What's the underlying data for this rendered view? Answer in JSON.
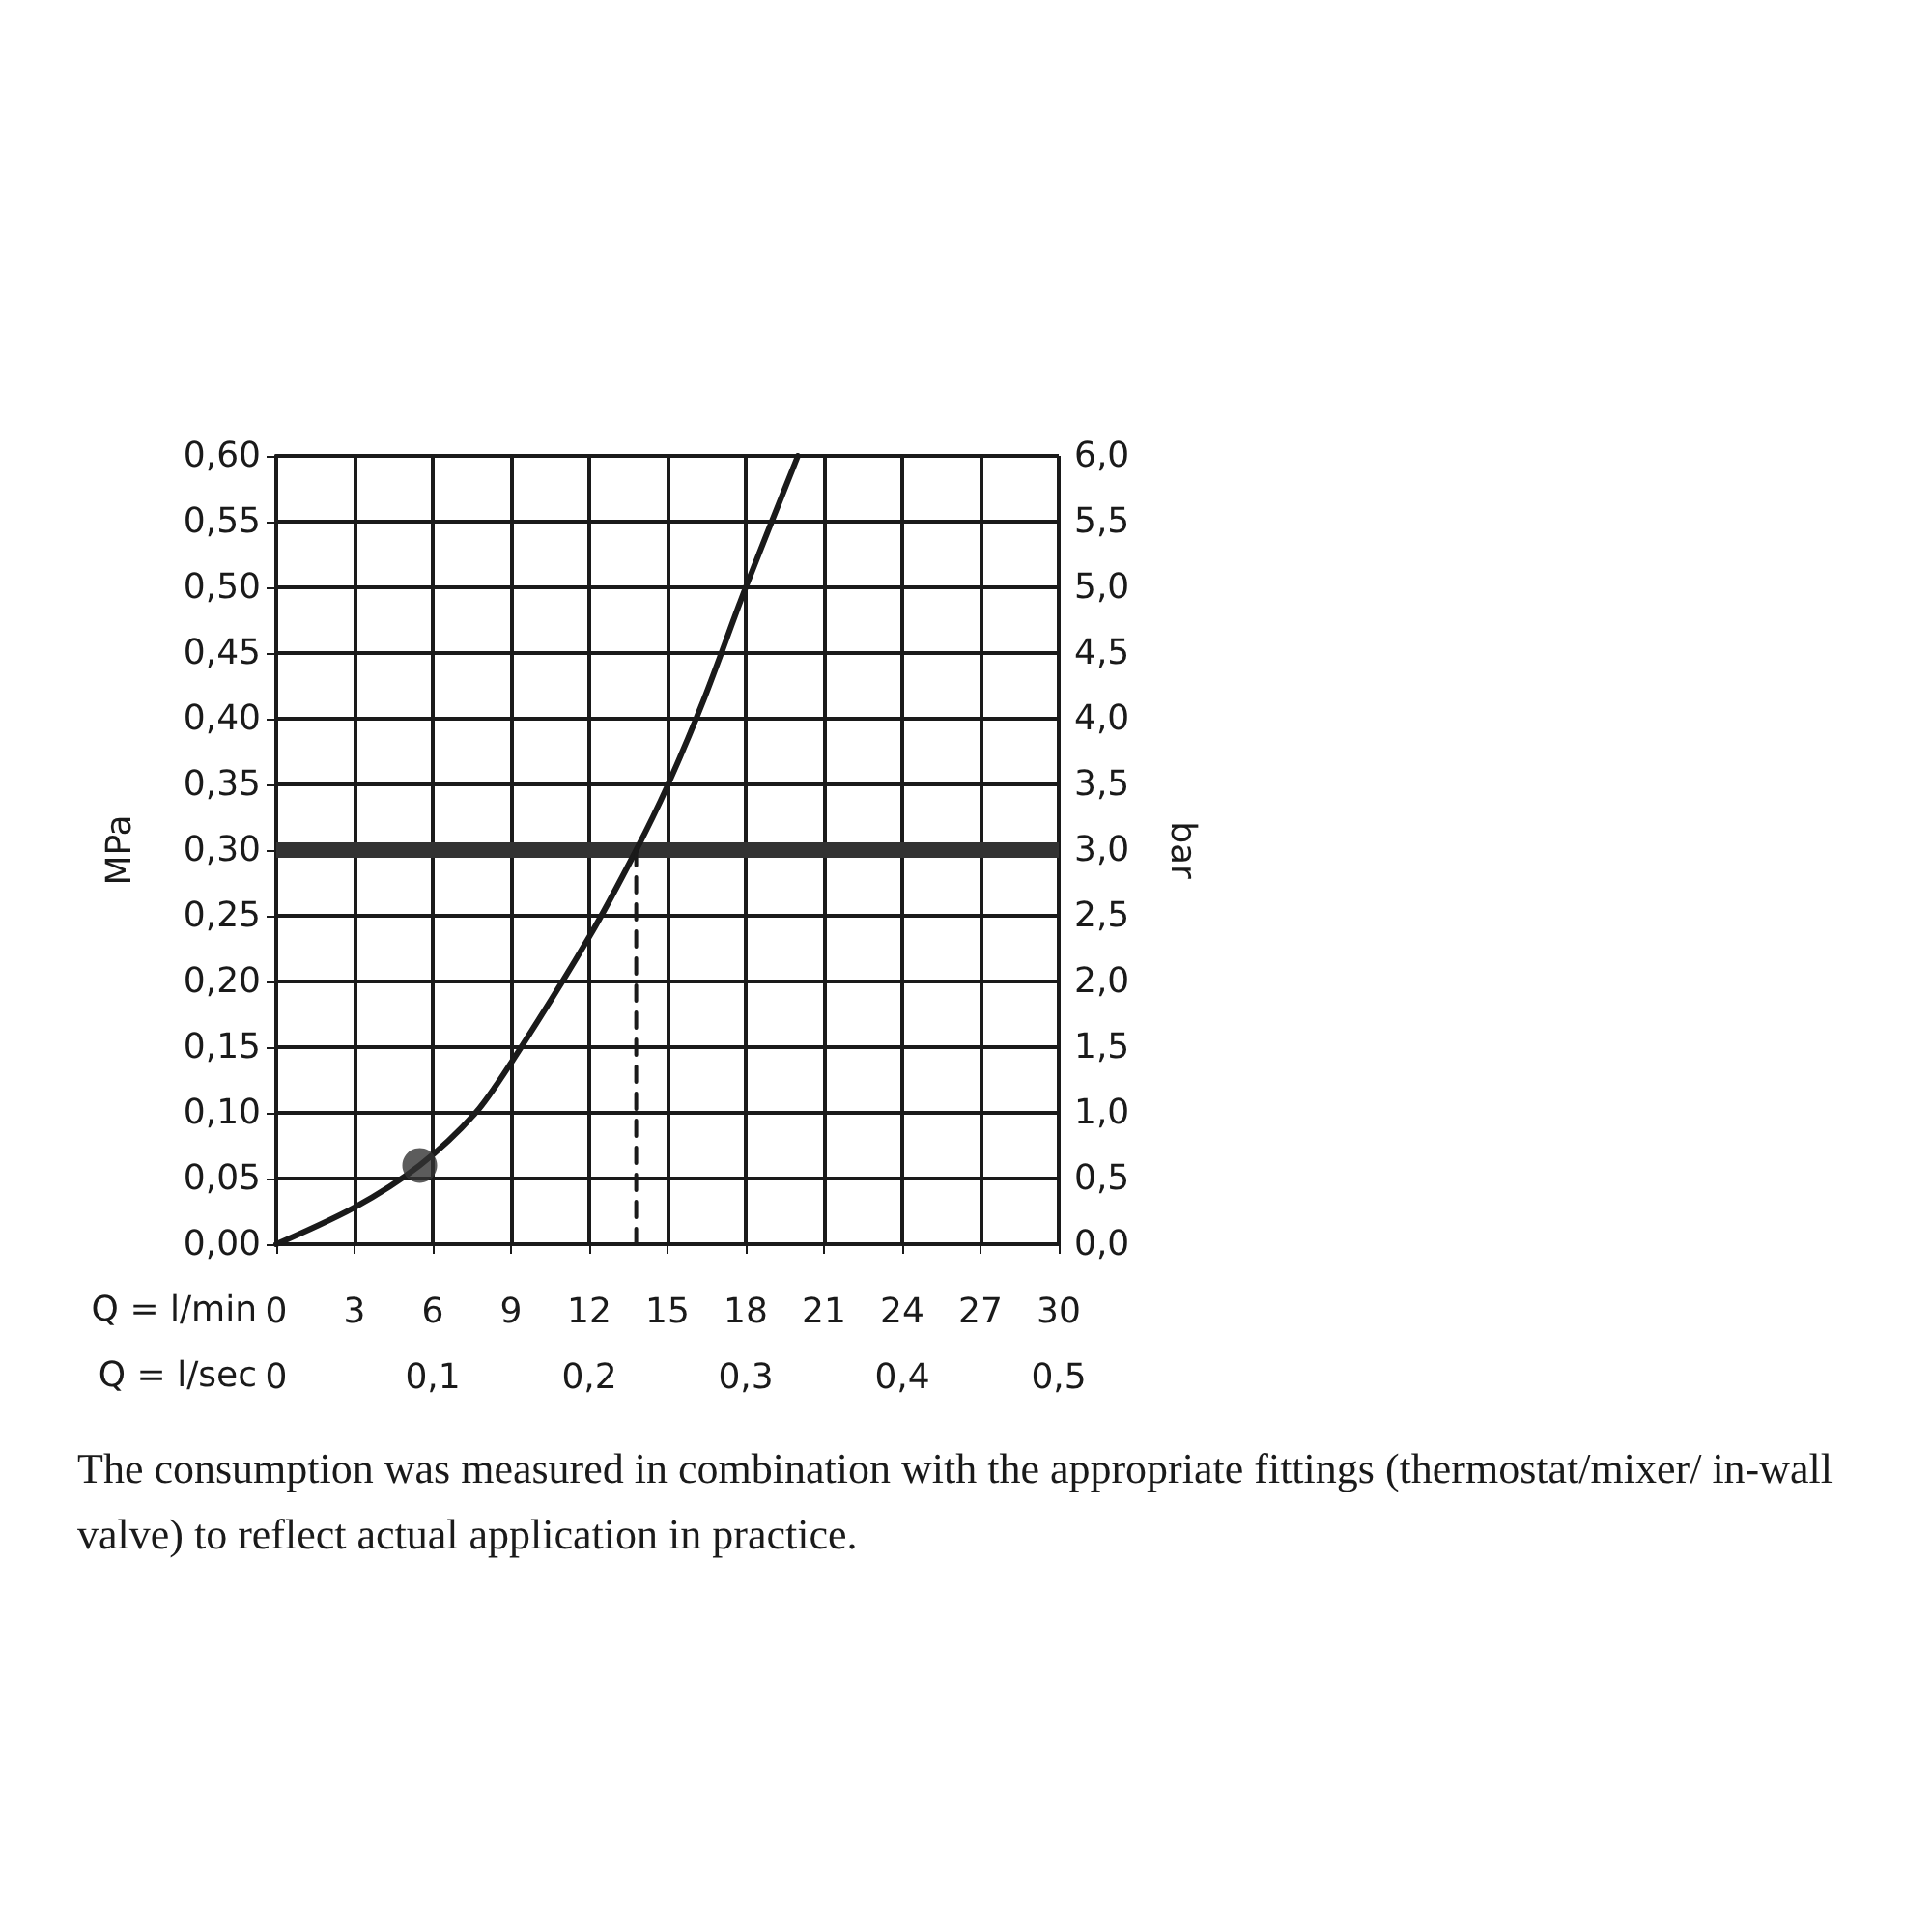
{
  "chart_data": {
    "type": "line",
    "xlabel": "Q = l/min",
    "x2label": "Q = l/sec",
    "ylabel": "MPa",
    "y2label": "bar",
    "xlim": [
      0,
      30
    ],
    "xticks": [
      0,
      3,
      6,
      9,
      12,
      15,
      18,
      21,
      24,
      27,
      30
    ],
    "x2lim": [
      0,
      0.5
    ],
    "x2ticks": [
      0,
      {
        "value": 0.1,
        "label": "0,1"
      },
      {
        "value": 0.2,
        "label": "0,2"
      },
      {
        "value": 0.3,
        "label": "0,3"
      },
      {
        "value": 0.4,
        "label": "0,4"
      },
      {
        "value": 0.5,
        "label": "0,5"
      }
    ],
    "ylim": [
      0,
      0.6
    ],
    "yticks": [
      {
        "value": 0,
        "label": "0,00"
      },
      {
        "value": 0.05,
        "label": "0,05"
      },
      {
        "value": 0.1,
        "label": "0,10"
      },
      {
        "value": 0.15,
        "label": "0,15"
      },
      {
        "value": 0.2,
        "label": "0,20"
      },
      {
        "value": 0.25,
        "label": "0,25"
      },
      {
        "value": 0.3,
        "label": "0,30"
      },
      {
        "value": 0.35,
        "label": "0,35"
      },
      {
        "value": 0.4,
        "label": "0,40"
      },
      {
        "value": 0.45,
        "label": "0,45"
      },
      {
        "value": 0.5,
        "label": "0,50"
      },
      {
        "value": 0.55,
        "label": "0,55"
      },
      {
        "value": 0.6,
        "label": "0,60"
      }
    ],
    "y2lim": [
      0,
      6
    ],
    "y2ticks": [
      {
        "value": 0,
        "label": "0,0"
      },
      {
        "value": 0.5,
        "label": "0,5"
      },
      {
        "value": 1,
        "label": "1,0"
      },
      {
        "value": 1.5,
        "label": "1,5"
      },
      {
        "value": 2,
        "label": "2,0"
      },
      {
        "value": 2.5,
        "label": "2,5"
      },
      {
        "value": 3,
        "label": "3,0"
      },
      {
        "value": 3.5,
        "label": "3,5"
      },
      {
        "value": 4,
        "label": "4,0"
      },
      {
        "value": 4.5,
        "label": "4,5"
      },
      {
        "value": 5,
        "label": "5,0"
      },
      {
        "value": 5.5,
        "label": "5,5"
      },
      {
        "value": 6,
        "label": "6,0"
      }
    ],
    "grid": true,
    "marker": "none",
    "series": [
      {
        "type": "line",
        "color": "#1a1a1a",
        "line_style": "solid",
        "x": [
          0,
          3,
          5.5,
          7.6,
          9,
          12,
          13.8,
          15,
          16.4,
          18,
          20
        ],
        "values": [
          0,
          0.028,
          0.06,
          0.099,
          0.138,
          0.234,
          0.3,
          0.349,
          0.415,
          0.5,
          0.6
        ]
      },
      {
        "type": "line",
        "color": "#1a1a1a",
        "line_style": "dashed",
        "x": [
          13.8,
          13.8
        ],
        "values": [
          0,
          0.3
        ]
      },
      {
        "type": "scatter",
        "color": "#333333",
        "marker": "circle",
        "x": [
          5.5
        ],
        "values": [
          0.06
        ]
      }
    ],
    "ref_lines": [
      {
        "axis": "y",
        "value": 0.3,
        "color": "#333333"
      }
    ],
    "annotations": [
      "The consumption was measured in combination with the appropriate fittings (thermostat/mixer/ in-wall valve) to reflect actual application in practice."
    ]
  }
}
